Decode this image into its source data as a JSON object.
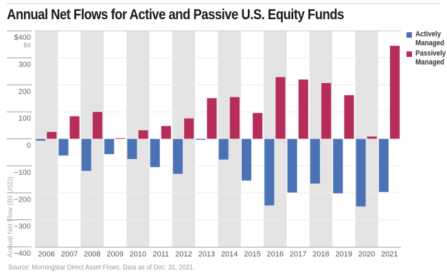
{
  "chart_data": {
    "type": "bar",
    "title": "Annual Net Flows for Active and Passive U.S. Equity Funds",
    "xlabel": "",
    "ylabel": "Annual Net Flow (Bil USD)",
    "y_unit_label": "Bil",
    "ylim": [
      -400,
      400
    ],
    "yticks": [
      400,
      300,
      200,
      100,
      0,
      -100,
      -200,
      -300,
      -400
    ],
    "ytick_labels": [
      "$400",
      "300",
      "200",
      "100",
      "0",
      "−100",
      "−200",
      "−300",
      "−400"
    ],
    "categories": [
      "2006",
      "2007",
      "2008",
      "2009",
      "2010",
      "2011",
      "2012",
      "2013",
      "2014",
      "2015",
      "2016",
      "2017",
      "2018",
      "2019",
      "2020",
      "2021"
    ],
    "series": [
      {
        "name": "Actively Managed",
        "color": "#4a72b5",
        "values": [
          -7,
          -62,
          -119,
          -57,
          -75,
          -105,
          -130,
          -4,
          -77,
          -155,
          -247,
          -199,
          -166,
          -202,
          -251,
          -197
        ]
      },
      {
        "name": "Passively Managed",
        "color": "#b52d58",
        "values": [
          26,
          84,
          100,
          3,
          32,
          48,
          76,
          151,
          155,
          96,
          229,
          220,
          207,
          162,
          9,
          345
        ]
      }
    ],
    "grid": true,
    "alternating_band_color": "#e4e4e4",
    "legend_position": "right",
    "source": "Source: Morningstar Direct Asset Flows. Data as of Dec. 31, 2021."
  }
}
